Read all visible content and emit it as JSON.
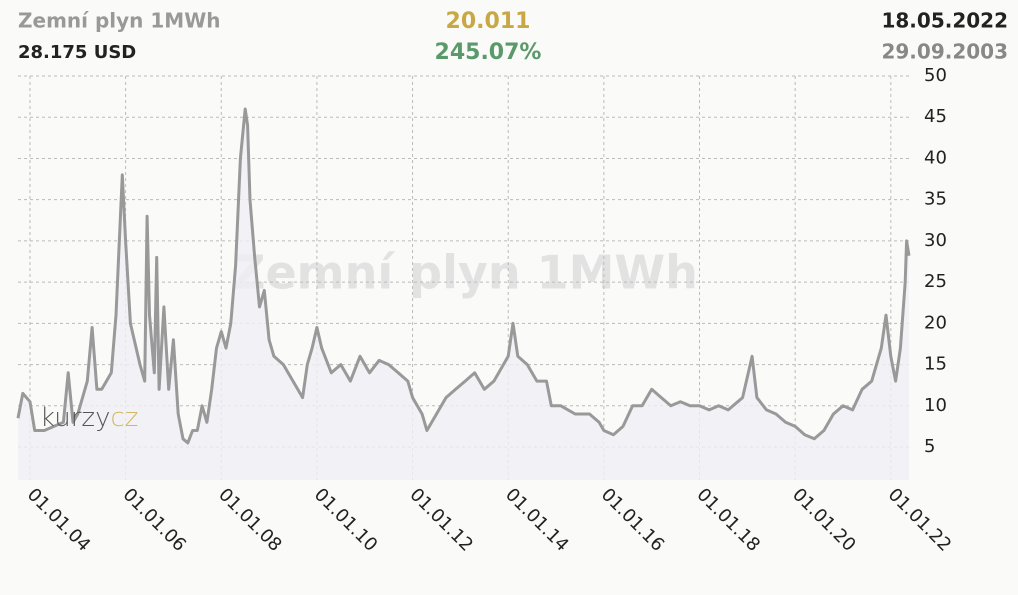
{
  "chart_data": {
    "type": "line",
    "title": "Zemní plyn 1MWh",
    "current_price": "28.175 USD",
    "change": "20.011",
    "change_percent": "245.07%",
    "date_end": "18.05.2022",
    "date_start": "29.09.2003",
    "logo": [
      "kurzy",
      "cz"
    ],
    "grid": true,
    "xlim": [
      2003.75,
      2022.38
    ],
    "xticks": [
      {
        "value": 2004,
        "label": "01.01.04"
      },
      {
        "value": 2006,
        "label": "01.01.06"
      },
      {
        "value": 2008,
        "label": "01.01.08"
      },
      {
        "value": 2010,
        "label": "01.01.10"
      },
      {
        "value": 2012,
        "label": "01.01.12"
      },
      {
        "value": 2014,
        "label": "01.01.14"
      },
      {
        "value": 2016,
        "label": "01.01.16"
      },
      {
        "value": 2018,
        "label": "01.01.18"
      },
      {
        "value": 2020,
        "label": "01.01.20"
      },
      {
        "value": 2022,
        "label": "01.01.22"
      }
    ],
    "ylim": [
      1,
      50
    ],
    "yticks": [
      5,
      10,
      15,
      20,
      25,
      30,
      35,
      40,
      45,
      50
    ],
    "x": [
      2003.75,
      2003.85,
      2004.0,
      2004.1,
      2004.3,
      2004.5,
      2004.7,
      2004.8,
      2004.9,
      2005.0,
      2005.2,
      2005.3,
      2005.4,
      2005.5,
      2005.7,
      2005.8,
      2005.93,
      2006.0,
      2006.1,
      2006.3,
      2006.4,
      2006.45,
      2006.5,
      2006.6,
      2006.65,
      2006.7,
      2006.8,
      2006.9,
      2007.0,
      2007.1,
      2007.2,
      2007.3,
      2007.4,
      2007.5,
      2007.6,
      2007.7,
      2007.8,
      2007.9,
      2008.0,
      2008.1,
      2008.2,
      2008.3,
      2008.4,
      2008.5,
      2008.55,
      2008.6,
      2008.7,
      2008.8,
      2008.9,
      2009.0,
      2009.1,
      2009.3,
      2009.5,
      2009.7,
      2009.8,
      2009.9,
      2010.0,
      2010.1,
      2010.3,
      2010.5,
      2010.7,
      2010.9,
      2011.1,
      2011.3,
      2011.5,
      2011.7,
      2011.9,
      2012.0,
      2012.2,
      2012.3,
      2012.5,
      2012.7,
      2012.9,
      2013.1,
      2013.3,
      2013.5,
      2013.7,
      2013.9,
      2014.0,
      2014.1,
      2014.2,
      2014.4,
      2014.6,
      2014.8,
      2014.9,
      2015.1,
      2015.4,
      2015.7,
      2015.9,
      2016.0,
      2016.2,
      2016.4,
      2016.6,
      2016.8,
      2017.0,
      2017.2,
      2017.4,
      2017.6,
      2017.8,
      2018.0,
      2018.2,
      2018.4,
      2018.6,
      2018.8,
      2018.9,
      2019.1,
      2019.2,
      2019.4,
      2019.6,
      2019.8,
      2020.0,
      2020.2,
      2020.4,
      2020.6,
      2020.8,
      2021.0,
      2021.2,
      2021.4,
      2021.6,
      2021.8,
      2021.9,
      2022.0,
      2022.1,
      2022.2,
      2022.3,
      2022.33,
      2022.38
    ],
    "series": [
      {
        "color": "#999999",
        "values": [
          8.5,
          11.5,
          10.5,
          7,
          7,
          7.5,
          8,
          14,
          8,
          9,
          13,
          19.5,
          12,
          12,
          14,
          21,
          38,
          30,
          20,
          15,
          13,
          33,
          21,
          14,
          28,
          12,
          22,
          12,
          18,
          9,
          6,
          5.5,
          7,
          7,
          10,
          8,
          12,
          17,
          19,
          17,
          20,
          27,
          40,
          46,
          44,
          35,
          28,
          22,
          24,
          18,
          16,
          15,
          13,
          11,
          15,
          17,
          19.5,
          17,
          14,
          15,
          13,
          16,
          14,
          15.5,
          15,
          14,
          13,
          11,
          9,
          7,
          9,
          11,
          12,
          13,
          14,
          12,
          13,
          15,
          16,
          20,
          16,
          15,
          13,
          13,
          10,
          10,
          9,
          9,
          8,
          7,
          6.5,
          7.5,
          10,
          10,
          12,
          11,
          10,
          10.5,
          10,
          10,
          9.5,
          10,
          9.5,
          10.5,
          11,
          16,
          11,
          9.5,
          9,
          8,
          7.5,
          6.5,
          6,
          7,
          9,
          10,
          9.5,
          12,
          13,
          17,
          21,
          16,
          13,
          17,
          25,
          30,
          28.2
        ]
      }
    ]
  }
}
